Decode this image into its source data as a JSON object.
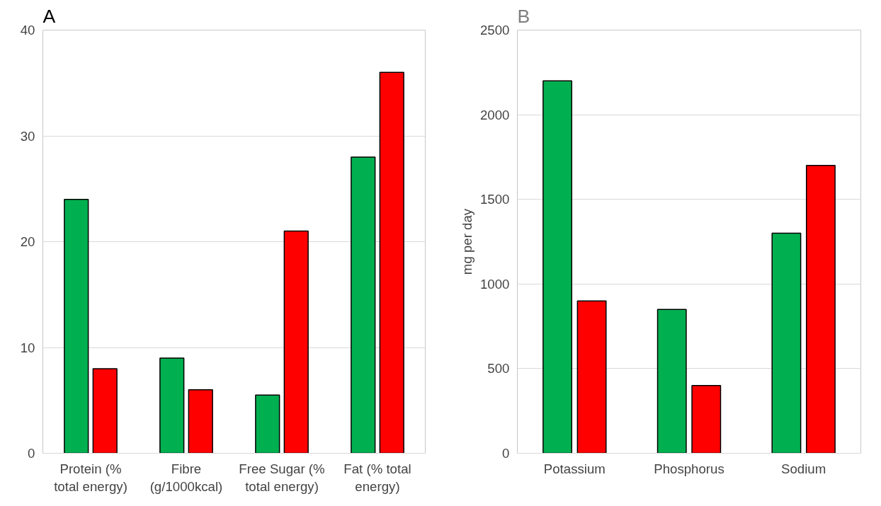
{
  "chart_data": [
    {
      "type": "bar",
      "title": "A",
      "categories": [
        "Protein (% total energy)",
        "Fibre (g/1000kcal)",
        "Free Sugar (% total energy)",
        "Fat (% total energy)"
      ],
      "series": [
        {
          "color": "#00b050",
          "values": [
            24,
            9,
            5.5,
            28
          ]
        },
        {
          "color": "#ff0000",
          "values": [
            8,
            6,
            21,
            36
          ]
        }
      ],
      "ylim": [
        0,
        40
      ],
      "yticks": [
        0,
        10,
        20,
        30,
        40
      ],
      "grid": "y"
    },
    {
      "type": "bar",
      "title": "B",
      "ylabel": "mg per day",
      "categories": [
        "Potassium",
        "Phosphorus",
        "Sodium"
      ],
      "series": [
        {
          "color": "#00b050",
          "values": [
            2200,
            850,
            1300
          ]
        },
        {
          "color": "#ff0000",
          "values": [
            900,
            400,
            1700
          ]
        }
      ],
      "ylim": [
        0,
        2500
      ],
      "yticks": [
        0,
        500,
        1000,
        1500,
        2000,
        2500
      ],
      "grid": "y"
    }
  ]
}
